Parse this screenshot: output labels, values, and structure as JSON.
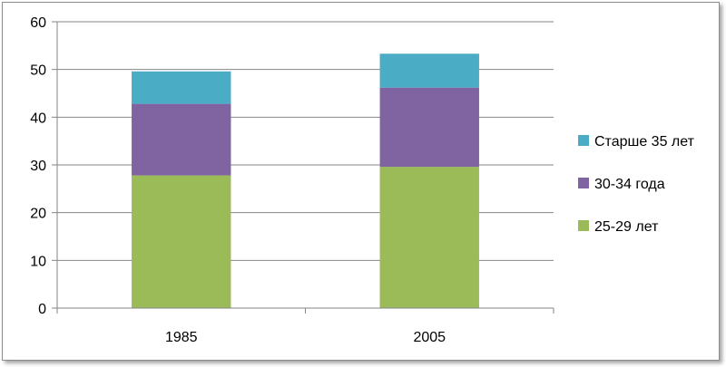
{
  "chart_data": {
    "type": "bar",
    "stacked": true,
    "categories": [
      "1985",
      "2005"
    ],
    "series": [
      {
        "name": "25-29 лет",
        "values": [
          27.8,
          29.6
        ],
        "color": "#9bbb59"
      },
      {
        "name": "30-34 года",
        "values": [
          15.0,
          16.6
        ],
        "color": "#8064a2"
      },
      {
        "name": "Старше 35 лет",
        "values": [
          6.8,
          7.1
        ],
        "color": "#4bacc6"
      }
    ],
    "ylim": [
      0,
      60
    ],
    "yticks": [
      0,
      10,
      20,
      30,
      40,
      50,
      60
    ],
    "grid": true,
    "legend_position": "right",
    "legend_order": [
      "Старше 35 лет",
      "30-34 года",
      "25-29 лет"
    ],
    "title": "",
    "xlabel": "",
    "ylabel": ""
  }
}
